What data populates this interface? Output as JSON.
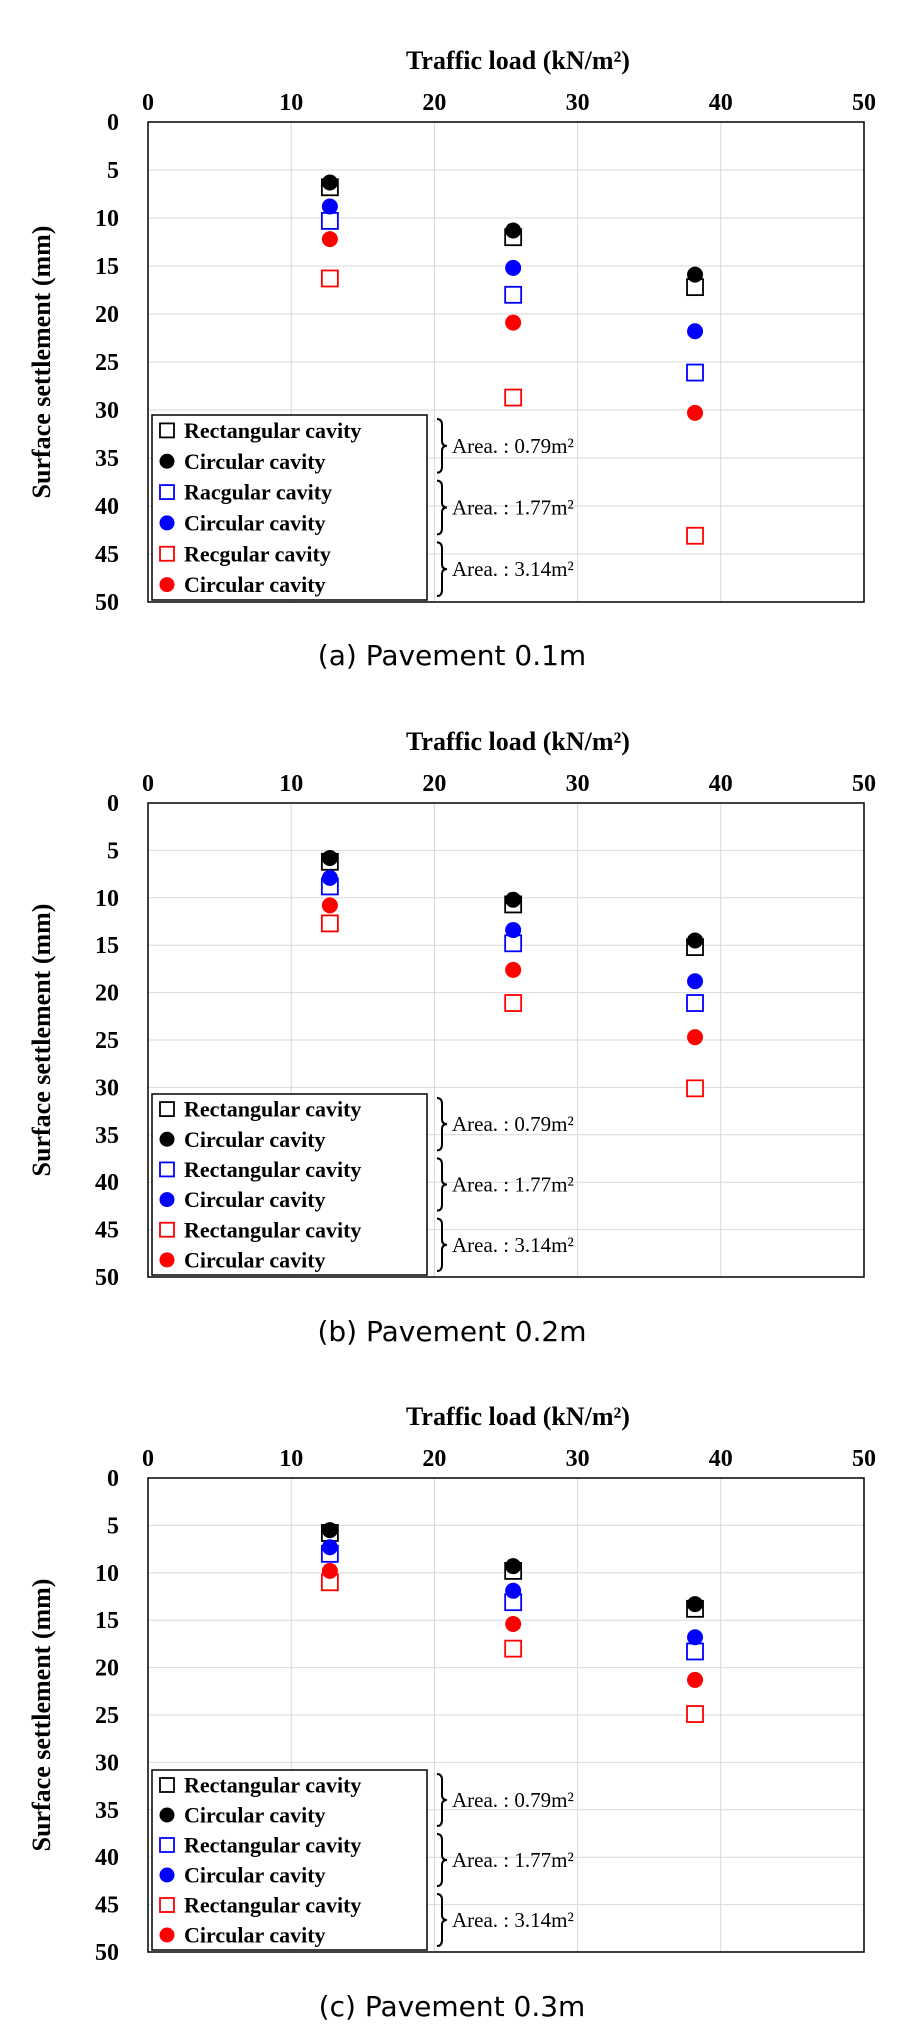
{
  "colors": {
    "black": "#000000",
    "blue": "#0000ff",
    "red": "#ff0000",
    "grid": "#d9d9d9"
  },
  "chart_data": [
    {
      "type": "scatter",
      "caption": "(a) Pavement 0.1m",
      "xlabel": "Traffic load (kN/m²)",
      "ylabel": "Surface settlement (mm)",
      "xlim": [
        0,
        50
      ],
      "ylim": [
        0,
        50
      ],
      "y_inverted": true,
      "x_axis_position": "top",
      "xticks": [
        0,
        10,
        20,
        30,
        40,
        50
      ],
      "yticks": [
        0,
        5,
        10,
        15,
        20,
        25,
        30,
        35,
        40,
        45,
        50
      ],
      "grid": true,
      "legend_position": "bottom-left",
      "x": [
        12.7,
        25.5,
        38.2
      ],
      "series": [
        {
          "name": "Rectangular cavity",
          "marker": "square-open",
          "color": "#000000",
          "values": [
            6.8,
            12.0,
            17.2
          ]
        },
        {
          "name": "Circular cavity",
          "marker": "circle-filled",
          "color": "#000000",
          "values": [
            6.3,
            11.3,
            15.9
          ]
        },
        {
          "name": "Racgular cavity",
          "marker": "square-open",
          "color": "#0000ff",
          "values": [
            10.3,
            18.0,
            26.1
          ]
        },
        {
          "name": "Circular cavity",
          "marker": "circle-filled",
          "color": "#0000ff",
          "values": [
            8.8,
            15.2,
            21.8
          ]
        },
        {
          "name": "Recgular cavity",
          "marker": "square-open",
          "color": "#ff0000",
          "values": [
            16.3,
            28.7,
            43.1
          ]
        },
        {
          "name": "Circular cavity",
          "marker": "circle-filled",
          "color": "#ff0000",
          "values": [
            12.2,
            20.9,
            30.3
          ]
        }
      ],
      "area_labels": [
        "Area. : 0.79m²",
        "Area. : 1.77m²",
        "Area. : 3.14m²"
      ]
    },
    {
      "type": "scatter",
      "caption": "(b) Pavement 0.2m",
      "xlabel": "Traffic load (kN/m²)",
      "ylabel": "Surface settlement (mm)",
      "xlim": [
        0,
        50
      ],
      "ylim": [
        0,
        50
      ],
      "y_inverted": true,
      "x_axis_position": "top",
      "xticks": [
        0,
        10,
        20,
        30,
        40,
        50
      ],
      "yticks": [
        0,
        5,
        10,
        15,
        20,
        25,
        30,
        35,
        40,
        45,
        50
      ],
      "grid": true,
      "legend_position": "bottom-left",
      "x": [
        12.7,
        25.5,
        38.2
      ],
      "series": [
        {
          "name": "Rectangular cavity",
          "marker": "square-open",
          "color": "#000000",
          "values": [
            6.2,
            10.7,
            15.2
          ]
        },
        {
          "name": "Circular cavity",
          "marker": "circle-filled",
          "color": "#000000",
          "values": [
            5.8,
            10.2,
            14.5
          ]
        },
        {
          "name": "Rectangular cavity",
          "marker": "square-open",
          "color": "#0000ff",
          "values": [
            8.8,
            14.8,
            21.1
          ]
        },
        {
          "name": "Circular cavity",
          "marker": "circle-filled",
          "color": "#0000ff",
          "values": [
            7.9,
            13.4,
            18.8
          ]
        },
        {
          "name": "Rectangular cavity",
          "marker": "square-open",
          "color": "#ff0000",
          "values": [
            12.7,
            21.1,
            30.1
          ]
        },
        {
          "name": "Circular cavity",
          "marker": "circle-filled",
          "color": "#ff0000",
          "values": [
            10.8,
            17.6,
            24.7
          ]
        }
      ],
      "area_labels": [
        "Area. : 0.79m²",
        "Area. : 1.77m²",
        "Area. : 3.14m²"
      ]
    },
    {
      "type": "scatter",
      "caption": "(c) Pavement 0.3m",
      "xlabel": "Traffic load (kN/m²)",
      "ylabel": "Surface settlement (mm)",
      "xlim": [
        0,
        50
      ],
      "ylim": [
        0,
        50
      ],
      "y_inverted": true,
      "x_axis_position": "top",
      "xticks": [
        0,
        10,
        20,
        30,
        40,
        50
      ],
      "yticks": [
        0,
        5,
        10,
        15,
        20,
        25,
        30,
        35,
        40,
        45,
        50
      ],
      "grid": true,
      "legend_position": "bottom-left",
      "x": [
        12.7,
        25.5,
        38.2
      ],
      "series": [
        {
          "name": "Rectangular cavity",
          "marker": "square-open",
          "color": "#000000",
          "values": [
            5.8,
            9.8,
            13.8
          ]
        },
        {
          "name": "Circular cavity",
          "marker": "circle-filled",
          "color": "#000000",
          "values": [
            5.5,
            9.3,
            13.3
          ]
        },
        {
          "name": "Rectangular cavity",
          "marker": "square-open",
          "color": "#0000ff",
          "values": [
            8.0,
            13.1,
            18.3
          ]
        },
        {
          "name": "Circular cavity",
          "marker": "circle-filled",
          "color": "#0000ff",
          "values": [
            7.3,
            11.9,
            16.8
          ]
        },
        {
          "name": "Rectangular cavity",
          "marker": "square-open",
          "color": "#ff0000",
          "values": [
            11.0,
            18.0,
            24.9
          ]
        },
        {
          "name": "Circular cavity",
          "marker": "circle-filled",
          "color": "#ff0000",
          "values": [
            9.8,
            15.4,
            21.3
          ]
        }
      ],
      "area_labels": [
        "Area. : 0.79m²",
        "Area. : 1.77m²",
        "Area. : 3.14m²"
      ]
    }
  ]
}
